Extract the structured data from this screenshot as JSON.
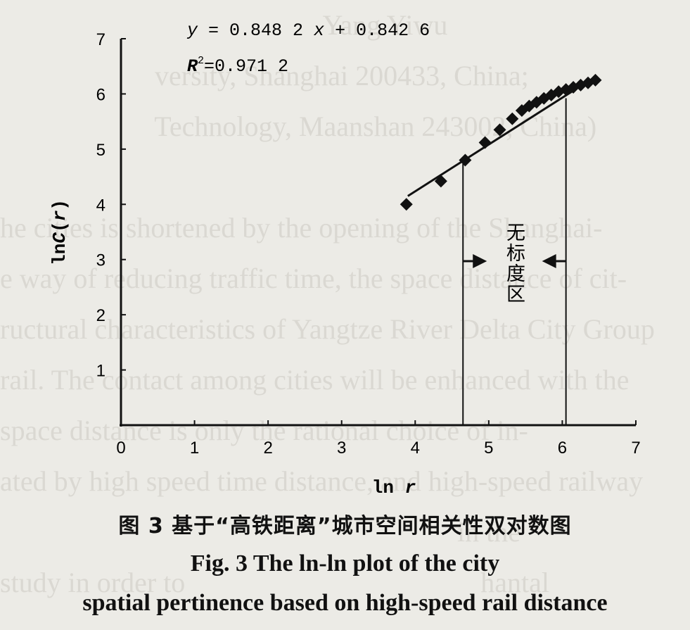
{
  "chart_data": {
    "type": "scatter",
    "xlabel": "ln r",
    "ylabel": "ln C(r)",
    "xlim": [
      0,
      7
    ],
    "ylim": [
      0,
      7
    ],
    "x_ticks": [
      "0",
      "1",
      "2",
      "3",
      "4",
      "5",
      "6",
      "7"
    ],
    "y_ticks": [
      "1",
      "2",
      "3",
      "4",
      "5",
      "6",
      "7"
    ],
    "grid": false,
    "points": [
      {
        "x": 3.88,
        "y": 4.0
      },
      {
        "x": 4.35,
        "y": 4.42
      },
      {
        "x": 4.68,
        "y": 4.8
      },
      {
        "x": 4.95,
        "y": 5.12
      },
      {
        "x": 5.15,
        "y": 5.35
      },
      {
        "x": 5.32,
        "y": 5.55
      },
      {
        "x": 5.45,
        "y": 5.7
      },
      {
        "x": 5.55,
        "y": 5.78
      },
      {
        "x": 5.65,
        "y": 5.85
      },
      {
        "x": 5.75,
        "y": 5.92
      },
      {
        "x": 5.85,
        "y": 5.98
      },
      {
        "x": 5.95,
        "y": 6.04
      },
      {
        "x": 6.05,
        "y": 6.08
      },
      {
        "x": 6.15,
        "y": 6.12
      },
      {
        "x": 6.25,
        "y": 6.16
      },
      {
        "x": 6.35,
        "y": 6.2
      },
      {
        "x": 6.45,
        "y": 6.25
      }
    ],
    "fit": {
      "slope": 0.8482,
      "intercept": 0.8426,
      "x_from": 3.9,
      "x_to": 6.3
    },
    "equation_y": "y",
    "equation_eq": " = 0.848 2 ",
    "equation_x": "x",
    "equation_rest": " + 0.842 6",
    "r2_label": "R",
    "r2_sup": "2",
    "r2_value": "=0.971 2",
    "scaleless_zone": {
      "x_from": 4.65,
      "x_to": 6.05,
      "label_chars": [
        "无",
        "标",
        "度",
        "区"
      ]
    }
  },
  "caption": {
    "zh": "图 3   基于“高铁距离”城市空间相关性双对数图",
    "en_line1": "Fig. 3   The ln-ln plot of the city",
    "en_line2": "spatial pertinence based on high-speed rail distance"
  },
  "bleed_through": [
    "                                              Yang Yiwu",
    "                      versity, Shanghai 200433, China;",
    "                      Technology, Maanshan 243002, China)",
    "",
    "he cities is shortened by the opening of the Shanghai-",
    "e way of reducing traffic time, the space distance of cit-",
    "ructural characteristics of Yangtze River Delta City Group",
    "rail. The contact among cities will be enhanced with the",
    "space distance is only the rational choice of in-",
    "ated by high speed time distance, and high-speed railway",
    "                                                                 in the",
    "study in order to                                          hantal"
  ]
}
